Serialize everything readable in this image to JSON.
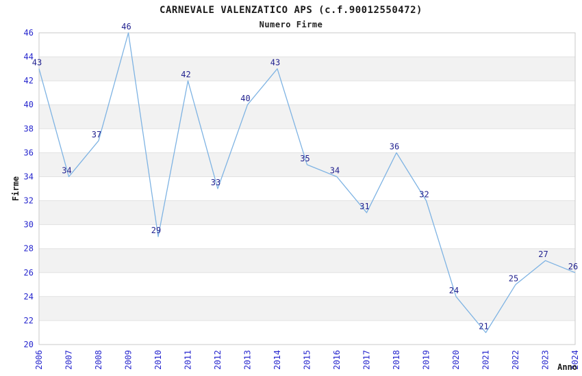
{
  "title": "CARNEVALE VALENZATICO APS (c.f.90012550472)",
  "subtitle": "Numero Firme",
  "chart_data": {
    "type": "line",
    "title": "CARNEVALE VALENZATICO APS (c.f.90012550472)",
    "subtitle": "Numero Firme",
    "x": [
      2006,
      2007,
      2008,
      2009,
      2010,
      2011,
      2012,
      2013,
      2014,
      2015,
      2016,
      2017,
      2018,
      2019,
      2020,
      2021,
      2022,
      2023,
      2024
    ],
    "values": [
      43,
      34,
      37,
      46,
      29,
      42,
      33,
      40,
      43,
      35,
      34,
      31,
      36,
      32,
      24,
      21,
      25,
      27,
      26
    ],
    "series_name": "Numero Firme",
    "xlabel": "Anno",
    "ylabel": "Firme",
    "ylim": [
      20,
      46
    ],
    "ytick_step": 2,
    "legend": "none",
    "grid": "horizontal gridlines every 2 units with alternating shaded bands",
    "data_labels": "shown above each point",
    "colors": {
      "line": "#7eb3e3",
      "data_label": "#1f1f8e",
      "tick_label": "#2727ce",
      "band": "#f2f2f2",
      "grid": "#e2e2e2",
      "border": "#c9c9c9",
      "text": "#1a1a1a"
    }
  }
}
